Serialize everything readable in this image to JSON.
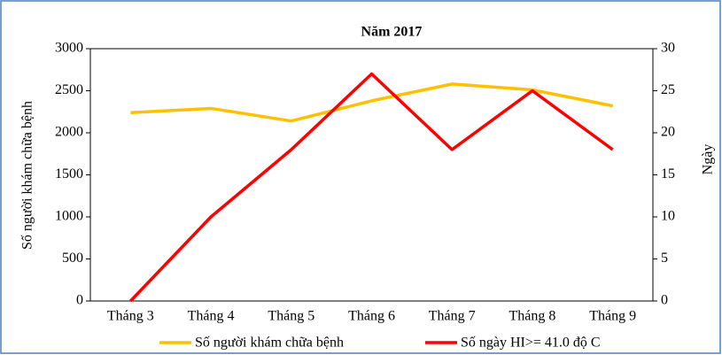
{
  "chart_data": {
    "type": "line",
    "title": "Năm 2017",
    "categories": [
      "Tháng 3",
      "Tháng 4",
      "Tháng 5",
      "Tháng 6",
      "Tháng 7",
      "Tháng 8",
      "Tháng 9"
    ],
    "series": [
      {
        "name": "Số người khám chữa bệnh",
        "color": "#ffc000",
        "values": [
          2240,
          2290,
          2140,
          2380,
          2580,
          2510,
          2320
        ]
      },
      {
        "name": "Số ngày HI>= 41.0 độ C",
        "color": "#ff0000",
        "axis": "y2",
        "values": [
          0,
          10,
          18,
          27,
          18,
          25,
          18
        ]
      }
    ],
    "ylabel": "Số người khám chữa bệnh",
    "y2label": "Ngày",
    "ylim": [
      0,
      3000
    ],
    "yticks": [
      0,
      500,
      1000,
      1500,
      2000,
      2500,
      3000
    ],
    "y2lim": [
      0,
      30
    ],
    "y2ticks": [
      0,
      5,
      10,
      15,
      20,
      25,
      30
    ],
    "grid": false,
    "legend": "bottom"
  }
}
